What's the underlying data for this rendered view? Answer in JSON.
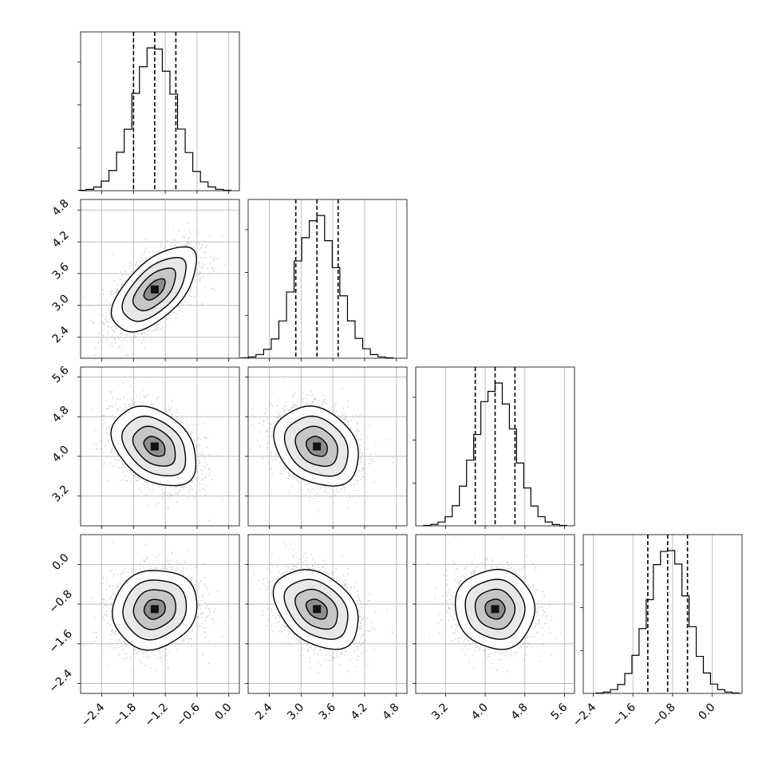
{
  "chart_data": {
    "type": "corner",
    "params": [
      {
        "id": "p0",
        "range": [
          -2.8,
          0.2
        ],
        "ticks": [
          -2.4,
          -1.8,
          -1.2,
          -0.6,
          0.0
        ],
        "tick_labels": [
          "−2.4",
          "−1.8",
          "−1.2",
          "−0.6",
          "0.0"
        ],
        "mean": -1.4,
        "sd": 0.4,
        "quantiles": [
          -1.8,
          -1.4,
          -1.0
        ]
      },
      {
        "id": "p1",
        "range": [
          2.0,
          5.0
        ],
        "ticks": [
          2.4,
          3.0,
          3.6,
          4.2,
          4.8
        ],
        "tick_labels": [
          "2.4",
          "3.0",
          "3.6",
          "4.2",
          "4.8"
        ],
        "mean": 3.3,
        "sd": 0.4,
        "quantiles": [
          2.9,
          3.3,
          3.7
        ]
      },
      {
        "id": "p2",
        "range": [
          2.6,
          5.8
        ],
        "ticks": [
          3.2,
          4.0,
          4.8,
          5.6
        ],
        "tick_labels": [
          "3.2",
          "4.0",
          "4.8",
          "5.6"
        ],
        "mean": 4.2,
        "sd": 0.4,
        "quantiles": [
          3.8,
          4.2,
          4.6
        ]
      },
      {
        "id": "p3",
        "range": [
          -2.6,
          0.6
        ],
        "ticks": [
          -2.4,
          -1.6,
          -0.8,
          0.0
        ],
        "tick_labels": [
          "−2.4",
          "−1.6",
          "−0.8",
          "0.0"
        ],
        "mean": -0.9,
        "sd": 0.4,
        "quantiles": [
          -1.3,
          -0.9,
          -0.5
        ]
      }
    ],
    "correlations": {
      "1-0": 0.6,
      "2-0": -0.35,
      "2-1": -0.25,
      "3-0": 0.1,
      "3-1": -0.35,
      "3-2": -0.05
    },
    "histogram_bins": 20,
    "contour_levels_sigma": [
      0.5,
      1.0,
      1.5,
      2.0
    ],
    "grid": true,
    "quantile_lines": "dashed"
  }
}
